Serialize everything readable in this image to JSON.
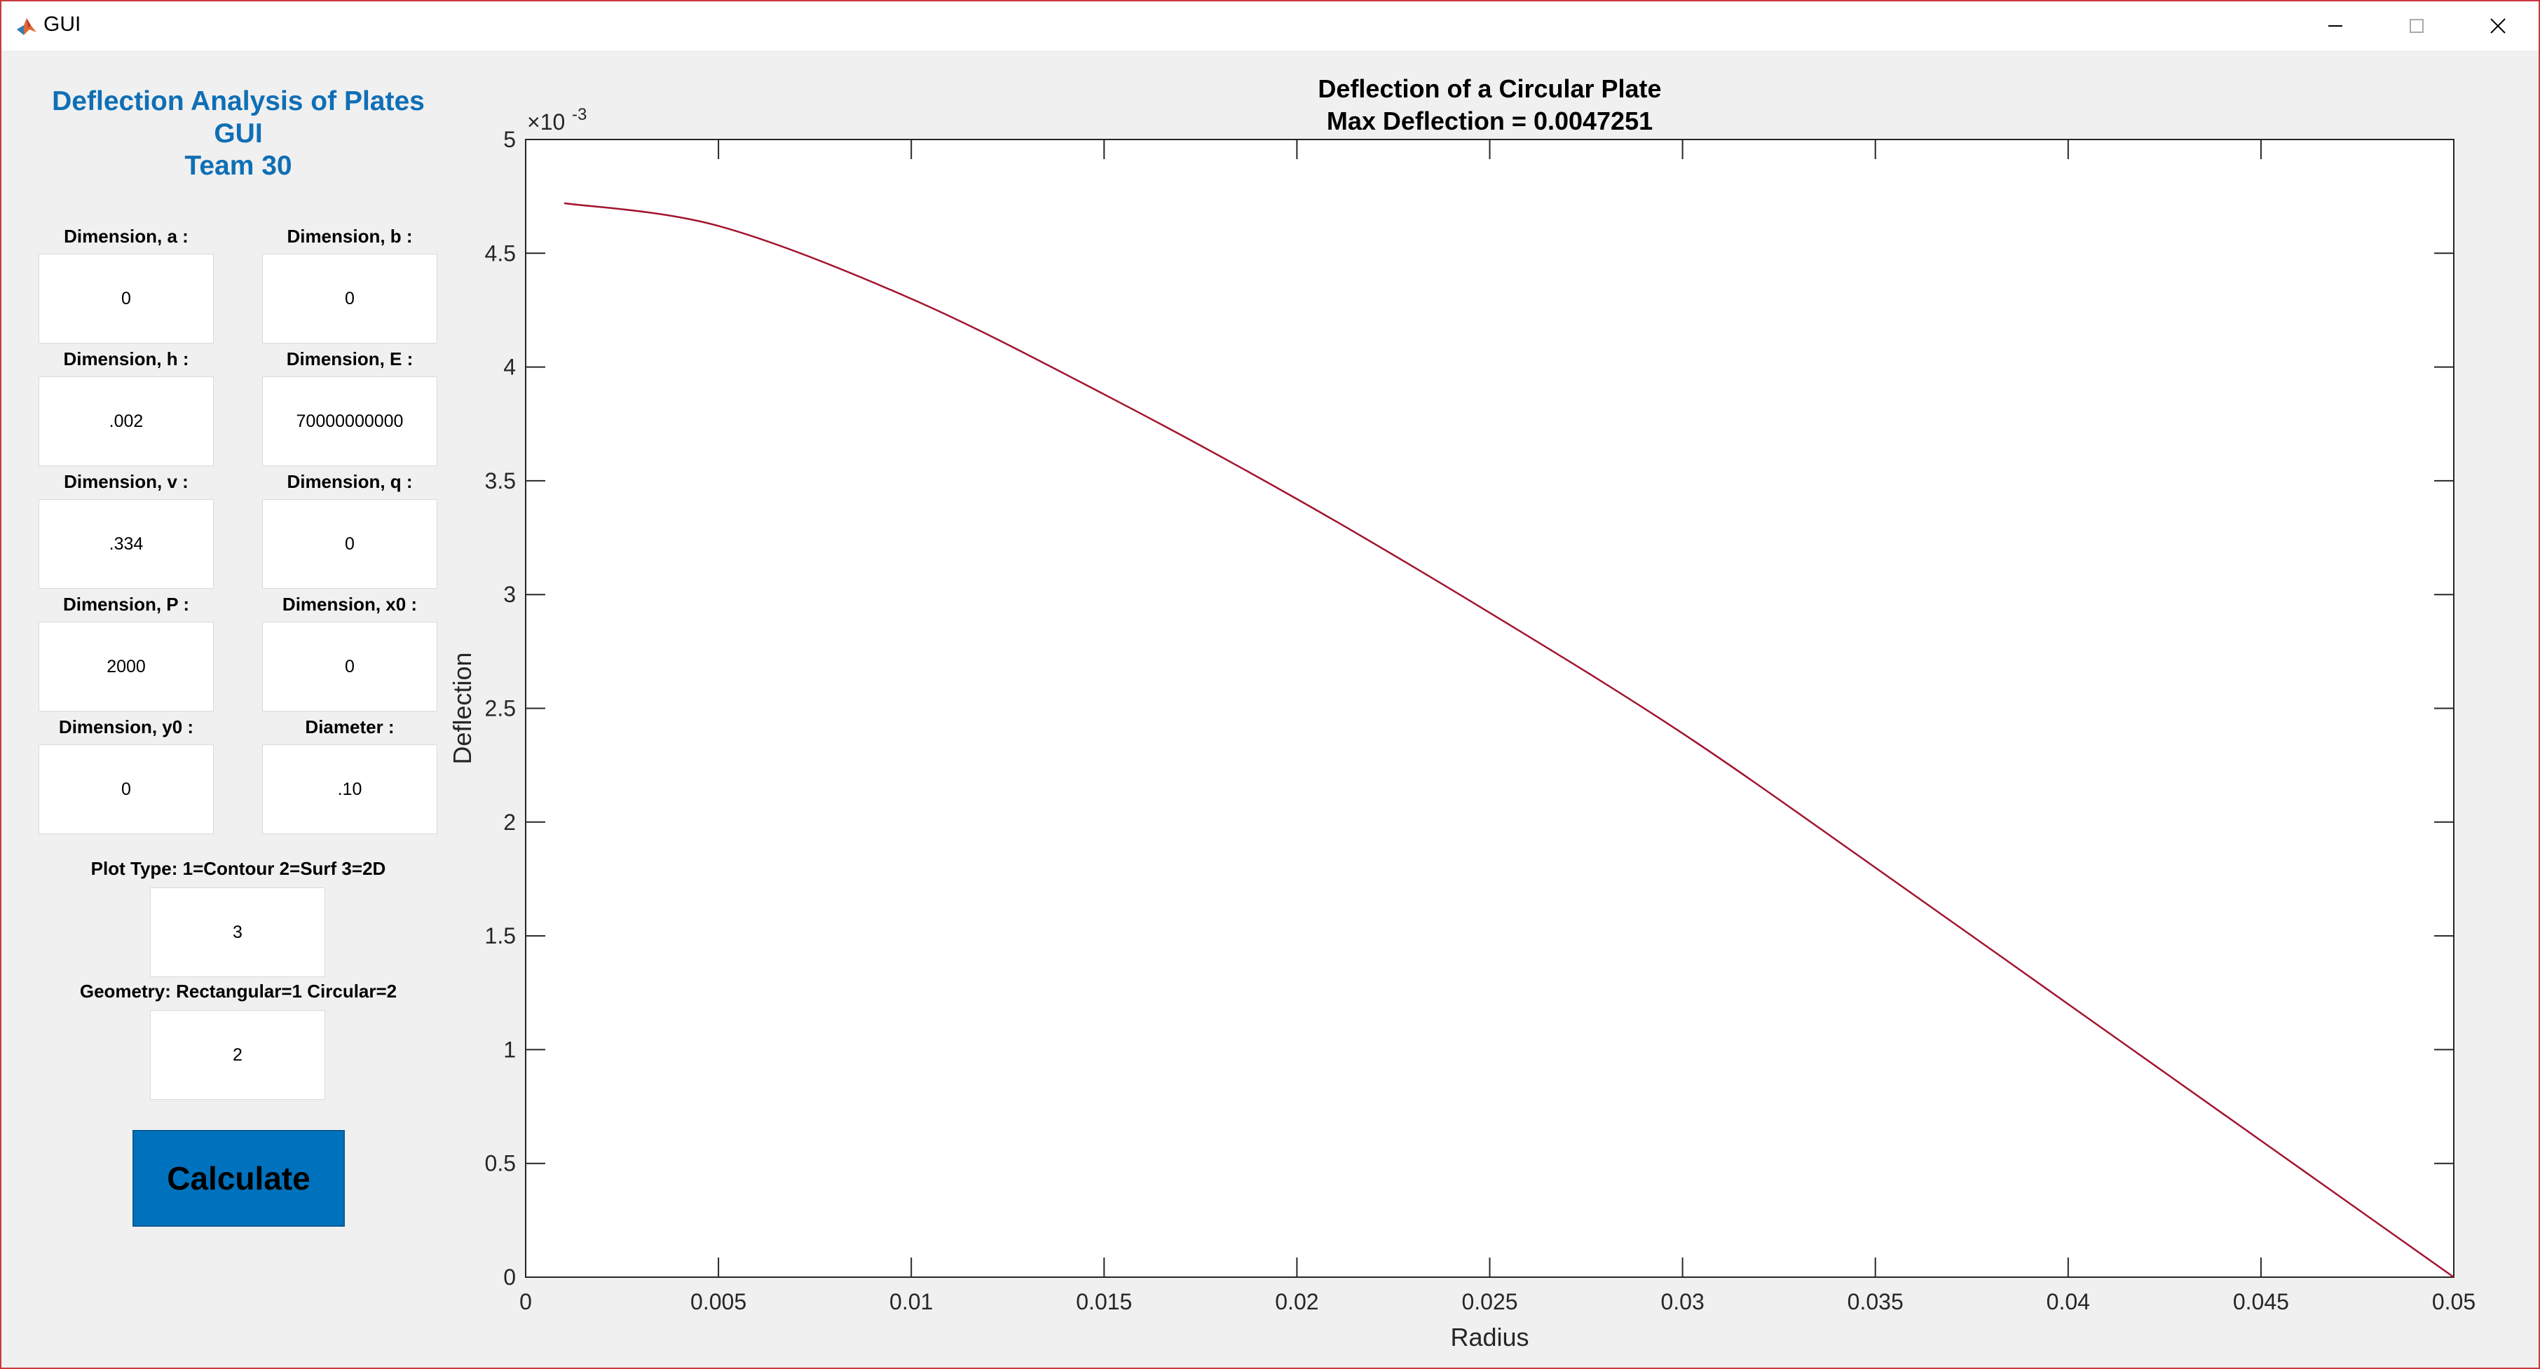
{
  "window": {
    "title": "GUI",
    "icon": "matlab-icon",
    "frame_color": "#c8393f"
  },
  "app": {
    "title_lines": [
      "Deflection Analysis of Plates",
      "GUI",
      "Team 30"
    ],
    "title_color": "#0f6fb5"
  },
  "fields": {
    "a": {
      "label": "Dimension, a :",
      "value": "0"
    },
    "b": {
      "label": "Dimension, b :",
      "value": "0"
    },
    "h": {
      "label": "Dimension, h :",
      "value": ".002"
    },
    "E": {
      "label": "Dimension, E :",
      "value": "70000000000"
    },
    "v": {
      "label": "Dimension, v :",
      "value": ".334"
    },
    "q": {
      "label": "Dimension, q :",
      "value": "0"
    },
    "P": {
      "label": "Dimension, P :",
      "value": "2000"
    },
    "x0": {
      "label": "Dimension, x0 :",
      "value": "0"
    },
    "y0": {
      "label": "Dimension, y0 :",
      "value": "0"
    },
    "diameter": {
      "label": "Diameter :",
      "value": ".10"
    },
    "plot_type": {
      "label": "Plot Type: 1=Contour  2=Surf  3=2D",
      "value": "3"
    },
    "geometry": {
      "label": "Geometry: Rectangular=1 Circular=2",
      "value": "2"
    }
  },
  "calculate_button": {
    "label": "Calculate",
    "color": "#0072bd"
  },
  "chart_data": {
    "type": "line",
    "title": "Deflection of a Circular Plate",
    "subtitle": "Max Deflection = 0.0047251",
    "xlabel": "Radius",
    "ylabel": "Deflection",
    "exponent_label": "×10",
    "exponent_power": "-3",
    "xlim": [
      0,
      0.05
    ],
    "ylim": [
      0,
      0.005
    ],
    "xticks": [
      0,
      0.005,
      0.01,
      0.015,
      0.02,
      0.025,
      0.03,
      0.035,
      0.04,
      0.045,
      0.05
    ],
    "xtick_labels": [
      "0",
      "0.005",
      "0.01",
      "0.015",
      "0.02",
      "0.025",
      "0.03",
      "0.035",
      "0.04",
      "0.045",
      "0.05"
    ],
    "yticks": [
      0,
      0.0005,
      0.001,
      0.0015,
      0.002,
      0.0025,
      0.003,
      0.0035,
      0.004,
      0.0045,
      0.005
    ],
    "ytick_labels": [
      "0",
      "0.5",
      "1",
      "1.5",
      "2",
      "2.5",
      "3",
      "3.5",
      "4",
      "4.5",
      "5"
    ],
    "grid": false,
    "series": [
      {
        "color": "#a2142f",
        "x": [
          0.001,
          0.005,
          0.01,
          0.015,
          0.02,
          0.025,
          0.03,
          0.035,
          0.04,
          0.045,
          0.05
        ],
        "y": [
          0.00472,
          0.00462,
          0.0043,
          0.00388,
          0.00342,
          0.00292,
          0.00239,
          0.0018,
          0.0012,
          0.0006,
          0.0
        ]
      }
    ]
  }
}
